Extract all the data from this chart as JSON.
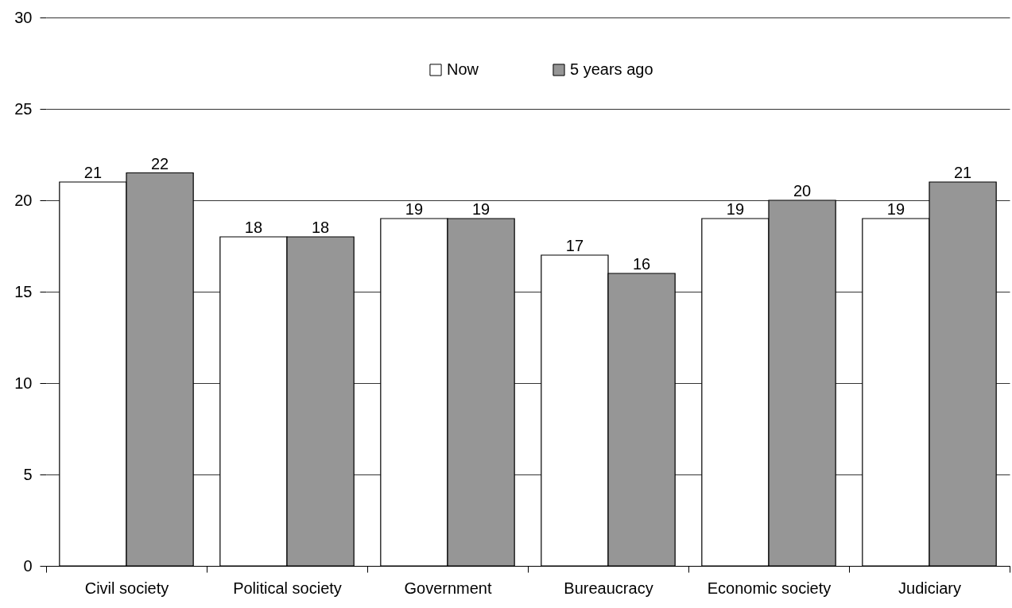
{
  "chart_data": {
    "type": "bar",
    "categories": [
      "Civil society",
      "Political society",
      "Government",
      "Bureaucracy",
      "Economic society",
      "Judiciary"
    ],
    "series": [
      {
        "name": "Now",
        "color": "#ffffff",
        "values": [
          21,
          18,
          19,
          17,
          19,
          19
        ],
        "value_labels": [
          "21",
          "18",
          "19",
          "17",
          "19",
          "19"
        ]
      },
      {
        "name": "5 years ago",
        "color": "#969696",
        "values": [
          21.5,
          18,
          19,
          16,
          20,
          21
        ],
        "value_labels": [
          "22",
          "18",
          "19",
          "16",
          "20",
          "21"
        ]
      }
    ],
    "ylim": [
      0,
      30
    ],
    "yticks": [
      0,
      5,
      10,
      15,
      20,
      25,
      30
    ],
    "grid": "y",
    "legend": "top"
  }
}
